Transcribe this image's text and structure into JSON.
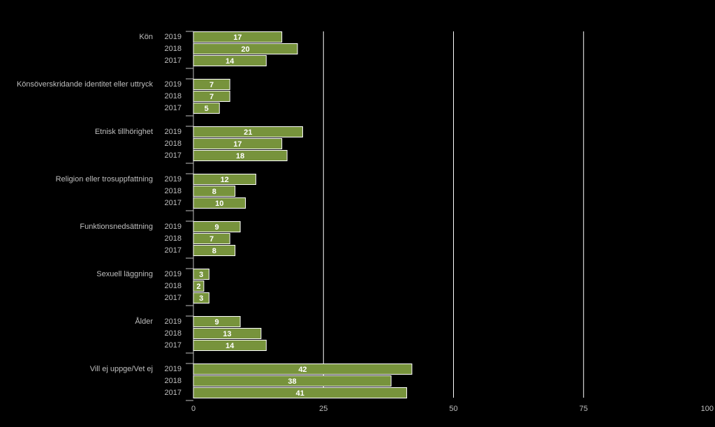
{
  "chart_data": {
    "type": "barh",
    "categories": [
      "Kön",
      "Könsöverskridande identitet eller uttryck",
      "Etnisk tillhörighet",
      "Religion eller trosuppfattning",
      "Funktionsnedsättning",
      "Sexuell läggning",
      "Ålder",
      "Vill ej uppge/Vet ej"
    ],
    "series": [
      {
        "name": "2019",
        "color": "#77933c",
        "values": [
          17,
          7,
          21,
          12,
          9,
          3,
          9,
          42
        ]
      },
      {
        "name": "2018",
        "color": "#77933c",
        "values": [
          20,
          7,
          17,
          8,
          7,
          2,
          13,
          38
        ]
      },
      {
        "name": "2017",
        "color": "#77933c",
        "values": [
          14,
          5,
          18,
          10,
          8,
          3,
          14,
          41
        ]
      }
    ],
    "xlim": [
      0,
      100
    ],
    "xticks": [
      0,
      25,
      50,
      75,
      100
    ],
    "grid": true
  }
}
